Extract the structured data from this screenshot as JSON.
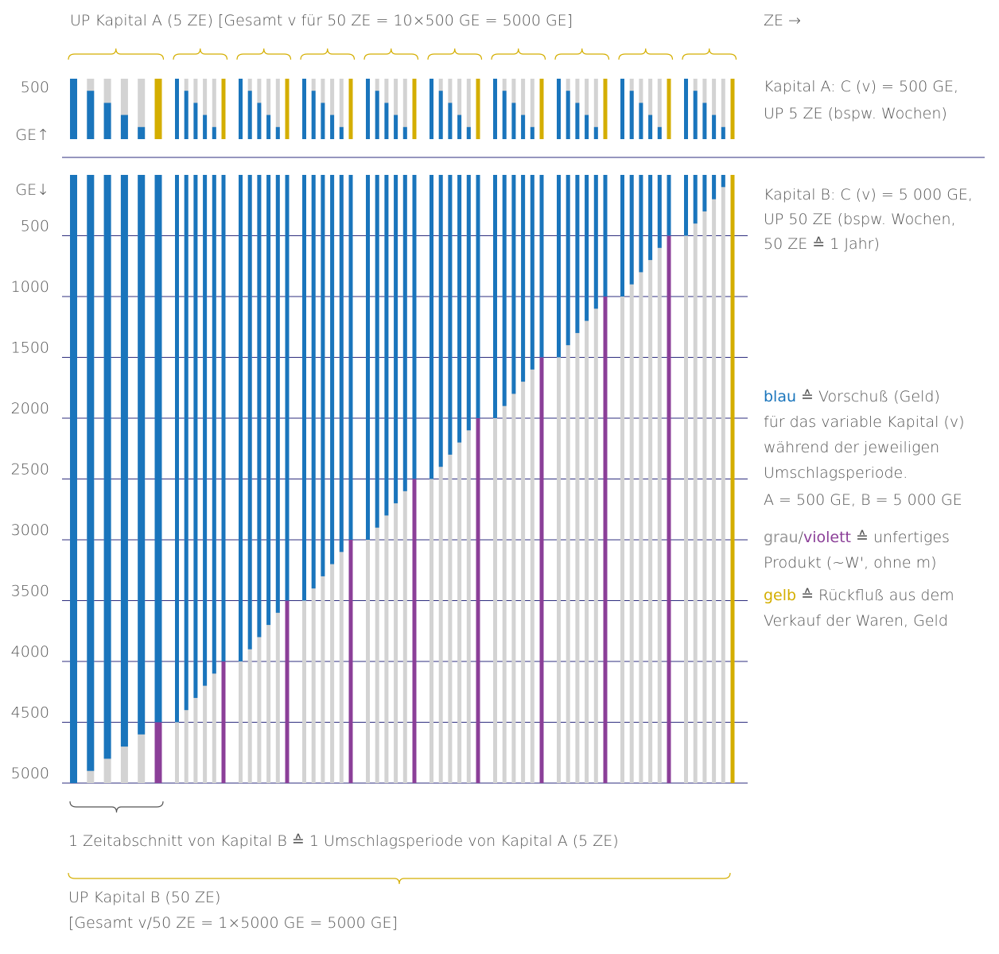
{
  "chart_data": [
    {
      "type": "bar",
      "title": "UP Kapital A (5 ZE) [Gesamt v für 50 ZE = 10×500 GE = 5000 GE]",
      "x_label": "ZE →",
      "y_label": "GE↑",
      "ylim": [
        0,
        500
      ],
      "yticks": [
        500
      ],
      "colors": {
        "advance": "#1a75bc",
        "product": "#d3d3d3",
        "return": "#d4ae00"
      },
      "groups": [
        {
          "values": [
            500,
            400,
            300,
            200,
            100
          ],
          "return": 500
        },
        {
          "values": [
            500,
            400,
            300,
            200,
            100
          ],
          "return": 500
        },
        {
          "values": [
            500,
            400,
            300,
            200,
            100
          ],
          "return": 500
        },
        {
          "values": [
            500,
            400,
            300,
            200,
            100
          ],
          "return": 500
        },
        {
          "values": [
            500,
            400,
            300,
            200,
            100
          ],
          "return": 500
        },
        {
          "values": [
            500,
            400,
            300,
            200,
            100
          ],
          "return": 500
        },
        {
          "values": [
            500,
            400,
            300,
            200,
            100
          ],
          "return": 500
        },
        {
          "values": [
            500,
            400,
            300,
            200,
            100
          ],
          "return": 500
        },
        {
          "values": [
            500,
            400,
            300,
            200,
            100
          ],
          "return": 500
        },
        {
          "values": [
            500,
            400,
            300,
            200,
            100
          ],
          "return": 500
        }
      ]
    },
    {
      "type": "bar",
      "y_label": "GE↓",
      "ylim": [
        0,
        5000
      ],
      "yticks": [
        500,
        1000,
        1500,
        2000,
        2500,
        3000,
        3500,
        4000,
        4500,
        5000
      ],
      "grid": true,
      "colors": {
        "advance": "#1a75bc",
        "product": "#d3d3d3",
        "product_closed": "#8b3f98",
        "return": "#d4ae00"
      },
      "groups": [
        {
          "values": [
            5000,
            4900,
            4800,
            4700,
            4600
          ],
          "closing": {
            "advance": 4500,
            "product": 500
          }
        },
        {
          "values": [
            4500,
            4400,
            4300,
            4200,
            4100
          ],
          "closing": {
            "advance": 4000,
            "product": 1000
          }
        },
        {
          "values": [
            4000,
            3900,
            3800,
            3700,
            3600
          ],
          "closing": {
            "advance": 3500,
            "product": 1500
          }
        },
        {
          "values": [
            3500,
            3400,
            3300,
            3200,
            3100
          ],
          "closing": {
            "advance": 3000,
            "product": 2000
          }
        },
        {
          "values": [
            3000,
            2900,
            2800,
            2700,
            2600
          ],
          "closing": {
            "advance": 2500,
            "product": 2500
          }
        },
        {
          "values": [
            2500,
            2400,
            2300,
            2200,
            2100
          ],
          "closing": {
            "advance": 2000,
            "product": 3000
          }
        },
        {
          "values": [
            2000,
            1900,
            1800,
            1700,
            1600
          ],
          "closing": {
            "advance": 1500,
            "product": 3500
          }
        },
        {
          "values": [
            1500,
            1400,
            1300,
            1200,
            1100
          ],
          "closing": {
            "advance": 1000,
            "product": 4000
          }
        },
        {
          "values": [
            1000,
            900,
            800,
            700,
            600
          ],
          "closing": {
            "advance": 500,
            "product": 4500
          }
        },
        {
          "values": [
            500,
            400,
            300,
            200,
            100
          ],
          "return": 5000
        }
      ],
      "annotation": "1 Zeitabschnitt von Kapital B ≙ 1 Umschlagsperiode von Kapital A (5 ZE)",
      "x_label": [
        "UP Kapital B (50 ZE)",
        "[Gesamt v/50 ZE = 1×5000 GE = 5000 GE]"
      ]
    }
  ],
  "notes": {
    "kapital_a": [
      "Kapital A: C (v) = 500 GE,",
      "UP 5 ZE (bspw. Wochen)"
    ],
    "kapital_b": [
      "Kapital B: C (v) = 5 000 GE,",
      "UP 50 ZE (bspw. Wochen,",
      "50 ZE ≙ 1 Jahr)"
    ]
  },
  "legend": [
    {
      "terms": [
        "blau"
      ],
      "text": "≙ Vorschuß (Geld)",
      "more": [
        "für das variable Kapital (v)",
        "während der jeweiligen",
        "Umschlagsperiode.",
        "A = 500 GE, B = 5 000 GE"
      ]
    },
    {
      "terms": [
        "grau",
        "violett"
      ],
      "separator": "/",
      "text": "≙ unfertiges",
      "more": [
        "Produkt (~W', ohne m)"
      ]
    },
    {
      "terms": [
        "gelb"
      ],
      "text": "≙ Rückfluß aus dem",
      "more": [
        "Verkauf der Waren, Geld"
      ]
    }
  ]
}
